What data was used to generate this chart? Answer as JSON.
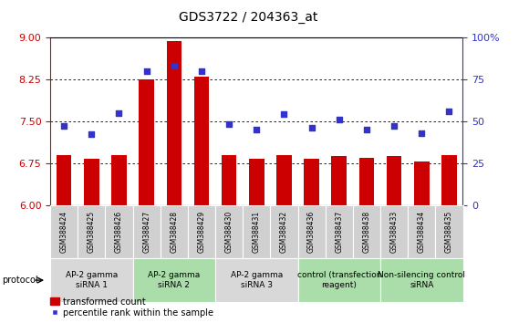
{
  "title": "GDS3722 / 204363_at",
  "categories": [
    "GSM388424",
    "GSM388425",
    "GSM388426",
    "GSM388427",
    "GSM388428",
    "GSM388429",
    "GSM388430",
    "GSM388431",
    "GSM388432",
    "GSM388436",
    "GSM388437",
    "GSM388438",
    "GSM388433",
    "GSM388434",
    "GSM388435"
  ],
  "bar_values": [
    6.9,
    6.82,
    6.9,
    8.25,
    8.93,
    8.3,
    6.9,
    6.82,
    6.9,
    6.82,
    6.88,
    6.85,
    6.88,
    6.78,
    6.9
  ],
  "dot_values": [
    47,
    42,
    55,
    80,
    83,
    80,
    48,
    45,
    54,
    46,
    51,
    45,
    47,
    43,
    56
  ],
  "bar_color": "#cc0000",
  "dot_color": "#3333cc",
  "ylim_left": [
    6,
    9
  ],
  "ylim_right": [
    0,
    100
  ],
  "yticks_left": [
    6,
    6.75,
    7.5,
    8.25,
    9
  ],
  "yticks_right": [
    0,
    25,
    50,
    75,
    100
  ],
  "ytick_labels_right": [
    "0",
    "25",
    "50",
    "75",
    "100%"
  ],
  "grid_lines": [
    6.75,
    7.5,
    8.25
  ],
  "groups": [
    {
      "label": "AP-2 gamma\nsiRNA 1",
      "start": 0,
      "end": 3,
      "color": "#d8d8d8"
    },
    {
      "label": "AP-2 gamma\nsiRNA 2",
      "start": 3,
      "end": 6,
      "color": "#aaddaa"
    },
    {
      "label": "AP-2 gamma\nsiRNA 3",
      "start": 6,
      "end": 9,
      "color": "#d8d8d8"
    },
    {
      "label": "control (transfection\nreagent)",
      "start": 9,
      "end": 12,
      "color": "#aaddaa"
    },
    {
      "label": "Non-silencing control\nsiRNA",
      "start": 12,
      "end": 15,
      "color": "#aaddaa"
    }
  ],
  "protocol_label": "protocol",
  "legend_bar_label": "transformed count",
  "legend_dot_label": "percentile rank within the sample",
  "background_color": "#ffffff",
  "tick_box_color": "#d0d0d0",
  "title_fontsize": 10,
  "axis_fontsize": 8,
  "tick_fontsize": 7,
  "group_fontsize": 6.5,
  "cat_fontsize": 5.5
}
